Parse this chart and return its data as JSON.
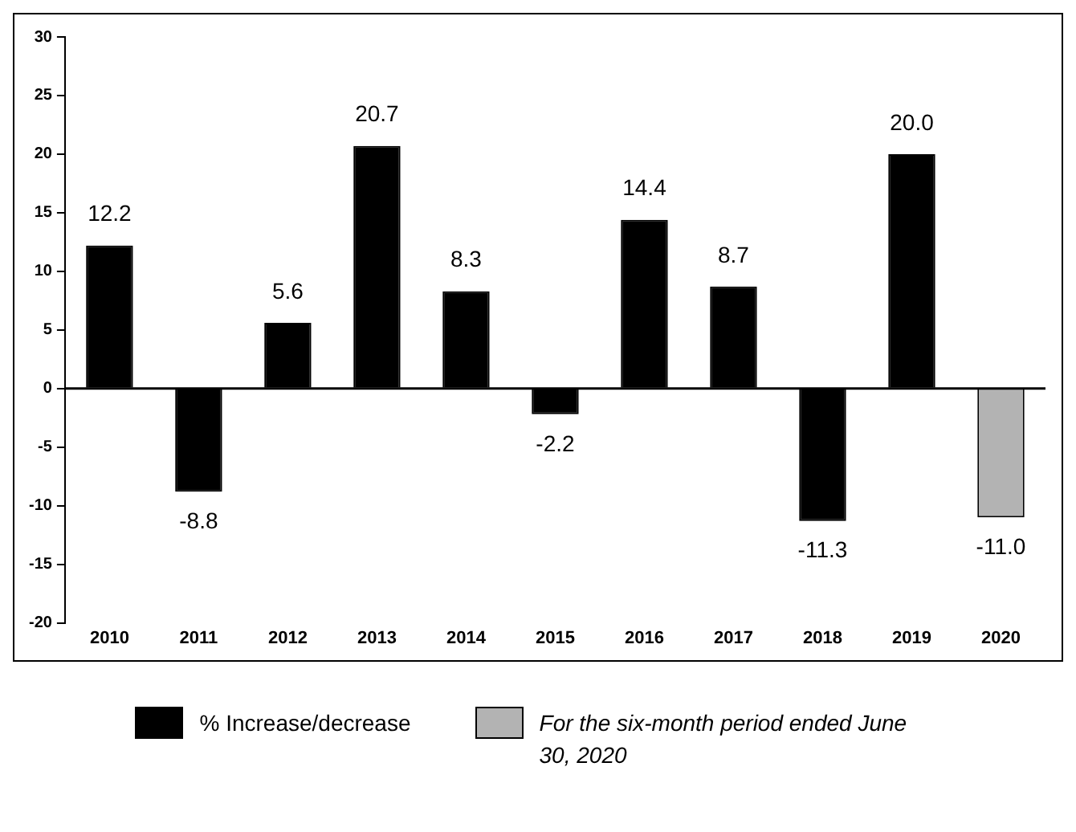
{
  "chart_data": {
    "type": "bar",
    "categories": [
      "2010",
      "2011",
      "2012",
      "2013",
      "2014",
      "2015",
      "2016",
      "2017",
      "2018",
      "2019",
      "2020"
    ],
    "series": [
      {
        "name": "% Increase/decrease",
        "color": "#000000",
        "values": [
          12.2,
          -8.8,
          5.6,
          20.7,
          8.3,
          -2.2,
          14.4,
          8.7,
          -11.3,
          20.0,
          null
        ],
        "value_labels": [
          "12.2",
          "-8.8",
          "5.6",
          "20.7",
          "8.3",
          "-2.2",
          "14.4",
          "8.7",
          "-11.3",
          "20.0",
          null
        ]
      },
      {
        "name": "For the six-month period ended June 30, 2020",
        "color": "#b3b3b3",
        "values": [
          null,
          null,
          null,
          null,
          null,
          null,
          null,
          null,
          null,
          null,
          -11.0
        ],
        "value_labels": [
          null,
          null,
          null,
          null,
          null,
          null,
          null,
          null,
          null,
          null,
          "-11.0"
        ]
      }
    ],
    "ylim": [
      -20,
      30
    ],
    "yticks": [
      -20,
      -15,
      -10,
      -5,
      0,
      5,
      10,
      15,
      20,
      25,
      30
    ],
    "grid": false,
    "legend": "bottom",
    "ref_lines": [
      {
        "axis": "y",
        "value": 0,
        "color": "#000000"
      }
    ]
  }
}
